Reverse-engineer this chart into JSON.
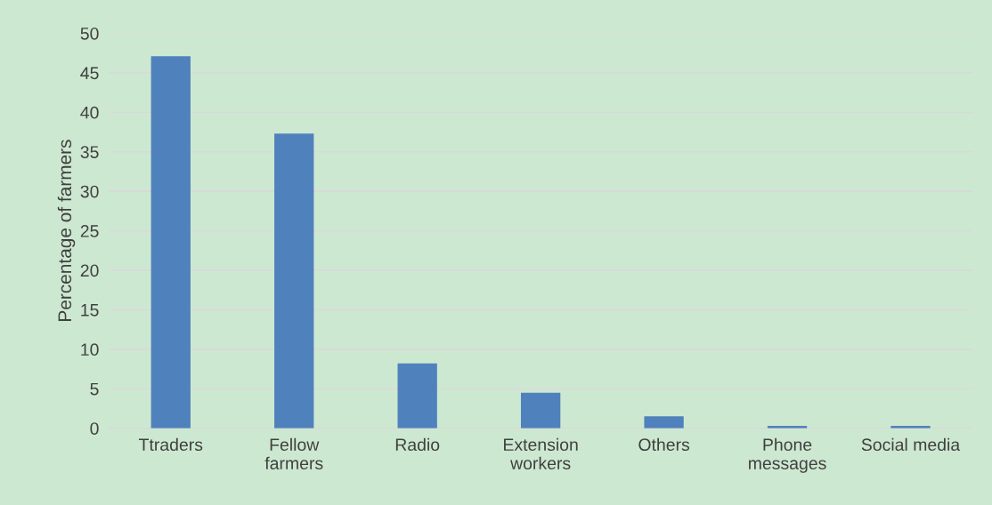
{
  "chart_data": {
    "type": "bar",
    "ylabel": "Percentage of farmers",
    "categories": [
      "Ttraders",
      "Fellow\nfarmers",
      "Radio",
      "Extension\nworkers",
      "Others",
      "Phone\nmessages",
      "Social media"
    ],
    "values": [
      47.1,
      37.3,
      8.2,
      4.5,
      1.5,
      0.3,
      0.3
    ],
    "color": "#4f81bd",
    "ylim": [
      0,
      50
    ],
    "yticks": [
      0,
      5,
      10,
      15,
      20,
      25,
      30,
      35,
      40,
      45,
      50
    ],
    "grid": "y"
  }
}
